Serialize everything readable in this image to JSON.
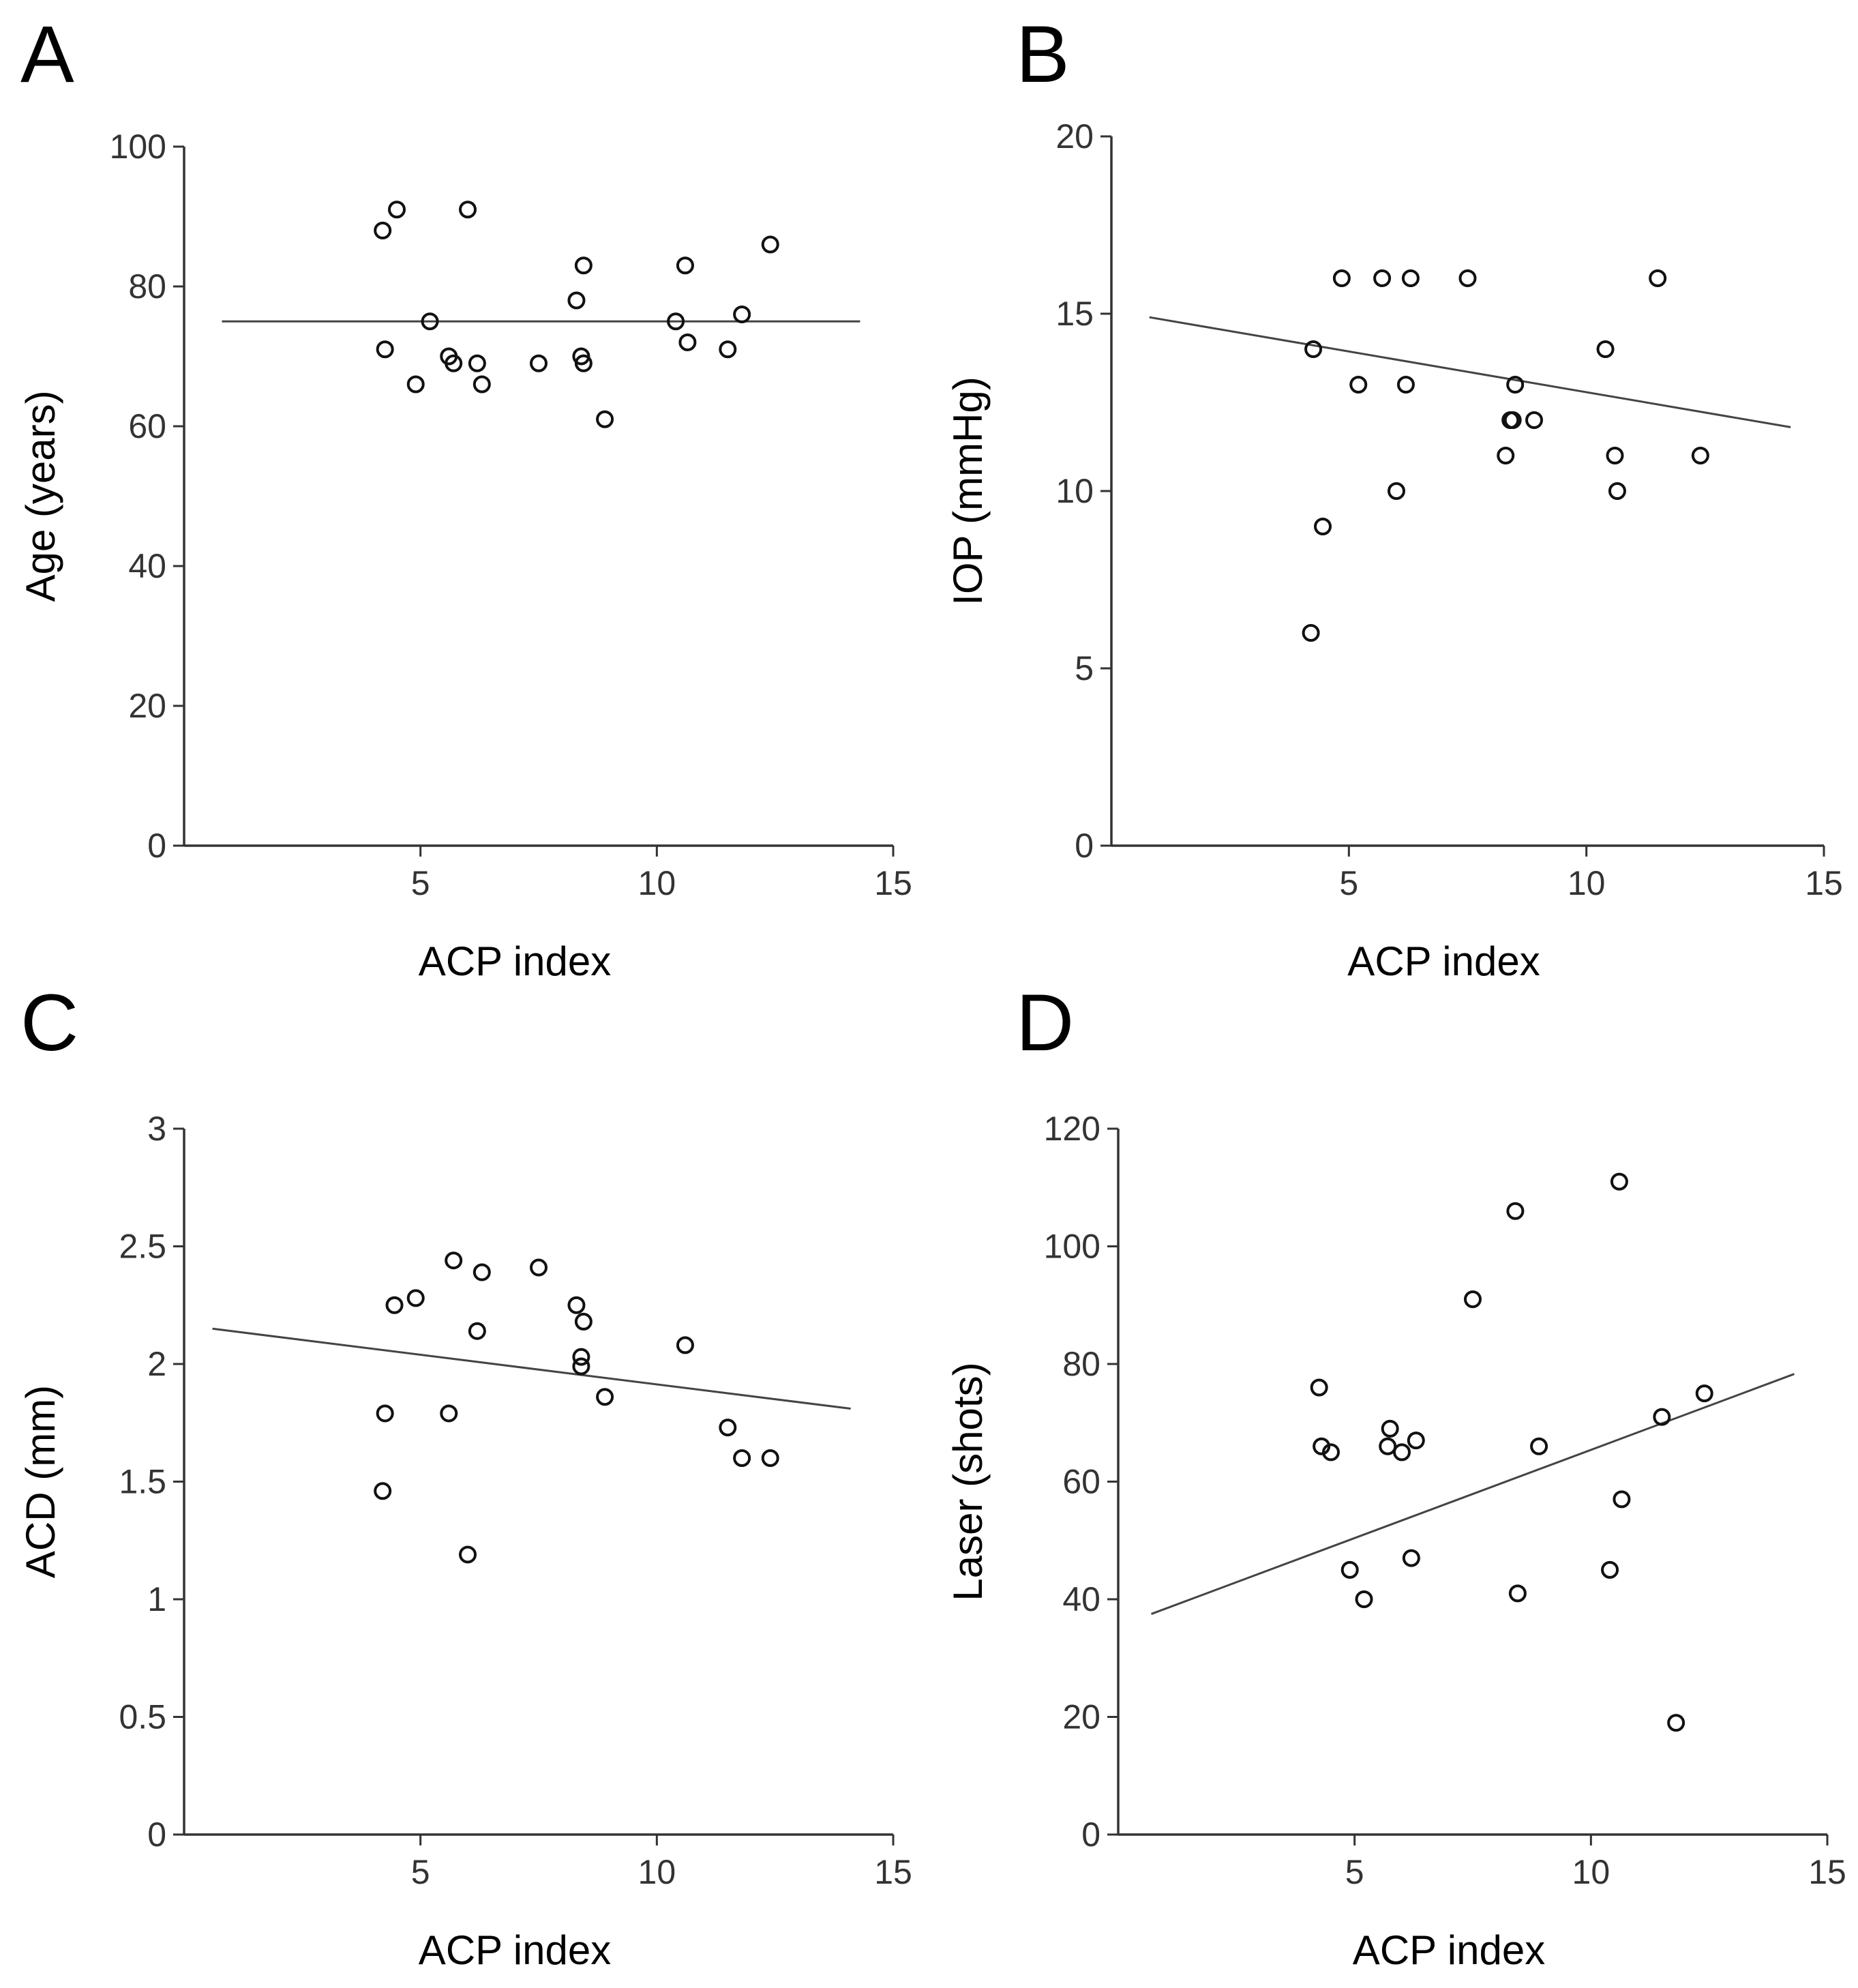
{
  "chart_data": [
    {
      "type": "scatter",
      "panel_label": "A",
      "xlabel": "ACP index",
      "ylabel": "Age (years)",
      "xlim": [
        0,
        15
      ],
      "ylim": [
        0,
        100
      ],
      "xticks": [
        5,
        10,
        15
      ],
      "yticks": [
        0,
        20,
        40,
        60,
        80,
        100
      ],
      "x": [
        4.2,
        4.5,
        4.25,
        4.9,
        5.2,
        5.6,
        5.7,
        6.0,
        6.2,
        6.3,
        7.5,
        8.3,
        8.4,
        8.45,
        8.45,
        8.9,
        10.4,
        10.6,
        10.65,
        11.5,
        11.8,
        12.4
      ],
      "y": [
        88,
        91,
        71,
        66,
        75,
        70,
        69,
        91,
        69,
        66,
        69,
        78,
        70,
        83,
        69,
        61,
        75,
        83,
        72,
        71,
        76,
        86
      ],
      "trend": {
        "x": [
          0.8,
          14.3
        ],
        "y": [
          75,
          75
        ]
      }
    },
    {
      "type": "scatter",
      "panel_label": "B",
      "xlabel": "ACP index",
      "ylabel": "IOP (mmHg)",
      "xlim": [
        0,
        15
      ],
      "ylim": [
        0,
        20
      ],
      "xticks": [
        5,
        10,
        15
      ],
      "yticks": [
        0,
        5,
        10,
        15,
        20
      ],
      "x": [
        4.2,
        4.25,
        4.45,
        4.85,
        5.2,
        5.7,
        6.0,
        6.2,
        6.3,
        7.5,
        8.3,
        8.4,
        8.45,
        8.5,
        8.9,
        10.4,
        10.6,
        10.65,
        11.5,
        12.4
      ],
      "y": [
        6,
        14,
        9,
        16,
        13,
        16,
        10,
        13,
        16,
        16,
        11,
        12,
        12,
        13,
        12,
        14,
        11,
        10,
        16,
        11
      ],
      "trend": {
        "x": [
          0.8,
          14.3
        ],
        "y": [
          14.9,
          11.8
        ]
      }
    },
    {
      "type": "scatter",
      "panel_label": "C",
      "xlabel": "ACP index",
      "ylabel": "ACD (mm)",
      "xlim": [
        0,
        15
      ],
      "ylim": [
        0,
        3
      ],
      "xticks": [
        5,
        10,
        15
      ],
      "yticks": [
        0,
        0.5,
        1,
        1.5,
        2,
        2.5,
        3
      ],
      "yticklabels": [
        "0",
        "0.5",
        "1",
        "1.5",
        "2",
        "2.5",
        "3"
      ],
      "x": [
        4.2,
        4.25,
        4.45,
        4.9,
        5.6,
        5.7,
        6.0,
        6.2,
        6.3,
        7.5,
        8.3,
        8.4,
        8.4,
        8.45,
        8.9,
        10.6,
        11.5,
        11.8,
        12.4
      ],
      "y": [
        1.46,
        1.79,
        2.25,
        2.28,
        1.79,
        2.44,
        1.19,
        2.14,
        2.39,
        2.41,
        2.25,
        1.99,
        2.03,
        2.18,
        1.86,
        2.08,
        1.73,
        1.6,
        1.6
      ],
      "trend": {
        "x": [
          0.6,
          14.1
        ],
        "y": [
          2.15,
          1.81
        ]
      }
    },
    {
      "type": "scatter",
      "panel_label": "D",
      "xlabel": "ACP index",
      "ylabel": "Laser (shots)",
      "xlim": [
        0,
        15
      ],
      "ylim": [
        0,
        120
      ],
      "xticks": [
        5,
        10,
        15
      ],
      "yticks": [
        0,
        20,
        40,
        60,
        80,
        100,
        120
      ],
      "x": [
        4.25,
        4.3,
        4.5,
        4.9,
        5.2,
        5.7,
        5.75,
        6.0,
        6.2,
        6.3,
        7.5,
        8.4,
        8.45,
        8.9,
        10.4,
        10.6,
        10.65,
        11.5,
        11.8,
        12.4
      ],
      "y": [
        76,
        66,
        65,
        45,
        40,
        66,
        69,
        65,
        47,
        67,
        91,
        106,
        41,
        66,
        45,
        111,
        57,
        71,
        19,
        75
      ],
      "trend": {
        "x": [
          0.7,
          14.3
        ],
        "y": [
          37.5,
          78.3
        ]
      }
    }
  ]
}
